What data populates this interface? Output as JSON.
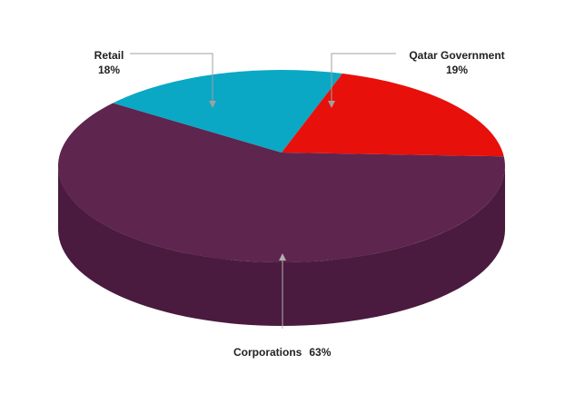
{
  "chart_data": {
    "type": "pie",
    "title": "",
    "style": "3d",
    "legend": "none",
    "slices": [
      {
        "label": "Retail",
        "value_label": "18%",
        "value": 18,
        "color": "#0aa8c4"
      },
      {
        "label": "Qatar Government",
        "value_label": "19%",
        "value": 19,
        "color": "#e8100a"
      },
      {
        "label": "Corporations",
        "value_label": "63%",
        "value": 63,
        "color": "#5e254f"
      }
    ]
  }
}
